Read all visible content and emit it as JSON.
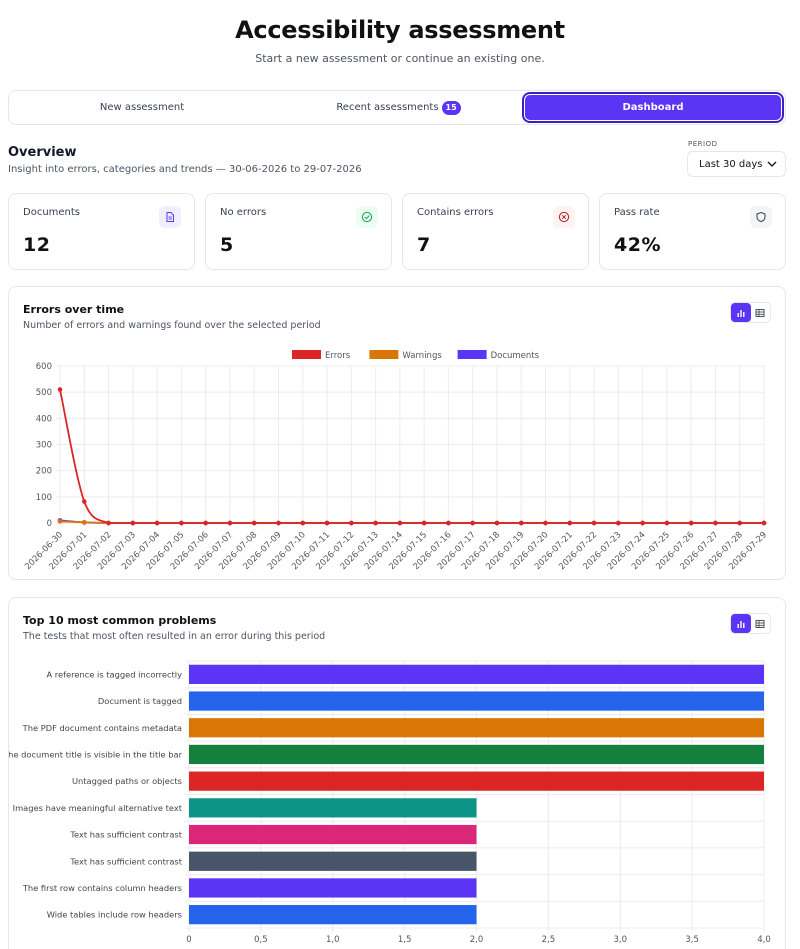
{
  "header": {
    "title": "Accessibility assessment",
    "subtitle": "Start a new assessment or continue an existing one."
  },
  "tabs": {
    "new": "New assessment",
    "recent": "Recent assessments",
    "recent_count": "15",
    "dashboard": "Dashboard"
  },
  "overview": {
    "title": "Overview",
    "subtitle": "Insight into errors, categories and trends — 30-06-2026 to 29-07-2026",
    "period_label": "PERIOD",
    "period_value": "Last 30 days"
  },
  "stats": {
    "documents": {
      "label": "Documents",
      "value": "12",
      "icon": "document-icon"
    },
    "no_errors": {
      "label": "No errors",
      "value": "5",
      "icon": "check-circle-icon"
    },
    "contains_errors": {
      "label": "Contains errors",
      "value": "7",
      "icon": "x-circle-icon"
    },
    "pass_rate": {
      "label": "Pass rate",
      "value": "42%",
      "icon": "shield-icon"
    }
  },
  "errors_panel": {
    "title": "Errors over time",
    "subtitle": "Number of errors and warnings found over the selected period"
  },
  "problems_panel": {
    "title": "Top 10 most common problems",
    "subtitle": "The tests that most often resulted in an error during this period"
  },
  "colors": {
    "accent": "#5b34f5",
    "errors": "#dc2626",
    "warnings": "#d97706",
    "documents": "#5b34f5"
  },
  "chart_data": [
    {
      "type": "line",
      "x": [
        "2026-06-30",
        "2026-07-01",
        "2026-07-02",
        "2026-07-03",
        "2026-07-04",
        "2026-07-05",
        "2026-07-06",
        "2026-07-07",
        "2026-07-08",
        "2026-07-09",
        "2026-07-10",
        "2026-07-11",
        "2026-07-12",
        "2026-07-13",
        "2026-07-14",
        "2026-07-15",
        "2026-07-16",
        "2026-07-17",
        "2026-07-18",
        "2026-07-19",
        "2026-07-20",
        "2026-07-21",
        "2026-07-22",
        "2026-07-23",
        "2026-07-24",
        "2026-07-25",
        "2026-07-26",
        "2026-07-27",
        "2026-07-28",
        "2026-07-29"
      ],
      "series": [
        {
          "name": "Errors",
          "color": "#dc2626",
          "values": [
            510,
            82,
            0,
            0,
            0,
            0,
            0,
            0,
            0,
            0,
            0,
            0,
            0,
            0,
            0,
            0,
            0,
            0,
            0,
            0,
            0,
            0,
            0,
            0,
            0,
            0,
            0,
            0,
            0,
            0
          ]
        },
        {
          "name": "Warnings",
          "color": "#d97706",
          "values": [
            6,
            3,
            0,
            0,
            0,
            0,
            0,
            0,
            0,
            0,
            0,
            0,
            0,
            0,
            0,
            0,
            0,
            0,
            0,
            0,
            0,
            0,
            0,
            0,
            0,
            0,
            0,
            0,
            0,
            0
          ]
        },
        {
          "name": "Documents",
          "color": "#5b34f5",
          "values": [
            10,
            2,
            0,
            0,
            0,
            0,
            0,
            0,
            0,
            0,
            0,
            0,
            0,
            0,
            0,
            0,
            0,
            0,
            0,
            0,
            0,
            0,
            0,
            0,
            0,
            0,
            0,
            0,
            0,
            0
          ]
        }
      ],
      "ylim": [
        0,
        600
      ],
      "yticks": [
        0,
        100,
        200,
        300,
        400,
        500,
        600
      ],
      "grid": true,
      "legend": "top-center"
    },
    {
      "type": "bar",
      "orientation": "horizontal",
      "categories": [
        "A reference is tagged incorrectly",
        "Document is tagged",
        "The PDF document contains metadata",
        "The document title is visible in the title bar",
        "Untagged paths or objects",
        "Images have meaningful alternative text",
        "Text has sufficient contrast",
        "Text has sufficient contrast",
        "The first row contains column headers",
        "Wide tables include row headers"
      ],
      "values": [
        4,
        4,
        4,
        4,
        4,
        2,
        2,
        2,
        2,
        2
      ],
      "colors": [
        "#5b34f5",
        "#2563eb",
        "#d97706",
        "#15803d",
        "#dc2626",
        "#0d9488",
        "#db2777",
        "#475569",
        "#5b34f5",
        "#2563eb"
      ],
      "xlim": [
        0,
        4
      ],
      "xticks": [
        "0",
        "0,5",
        "1,0",
        "1,5",
        "2,0",
        "2,5",
        "3,0",
        "3,5",
        "4,0"
      ],
      "grid": true
    }
  ]
}
